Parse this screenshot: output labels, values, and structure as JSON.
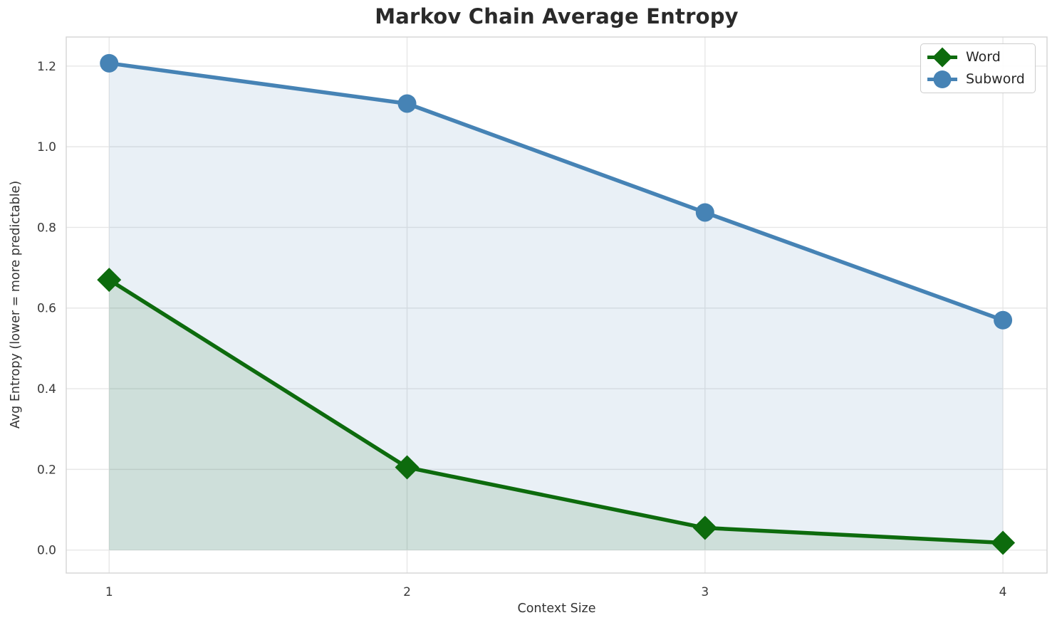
{
  "chart_data": {
    "type": "line",
    "title": "Markov Chain Average Entropy",
    "xlabel": "Context Size",
    "ylabel": "Avg Entropy (lower = more predictable)",
    "x": [
      1,
      2,
      3,
      4
    ],
    "series": [
      {
        "name": "Word",
        "values": [
          0.67,
          0.205,
          0.055,
          0.018
        ],
        "color": "#0d6b0d",
        "marker": "diamond",
        "fill": true,
        "fill_alpha": 0.12
      },
      {
        "name": "Subword",
        "values": [
          1.207,
          1.107,
          0.837,
          0.57
        ],
        "color": "#4683b5",
        "marker": "circle",
        "fill": true,
        "fill_alpha": 0.12
      }
    ],
    "xticks": [
      1,
      2,
      3,
      4
    ],
    "yticks": [
      0.0,
      0.2,
      0.4,
      0.6,
      0.8,
      1.0,
      1.2
    ],
    "xlim": [
      0.856,
      4.148
    ],
    "ylim": [
      -0.057,
      1.272
    ],
    "grid": true,
    "grid_color": "#e7e7e7",
    "frame_color": "#d4d4d4",
    "fill_baseline": 0,
    "legend_position": "upper right"
  }
}
